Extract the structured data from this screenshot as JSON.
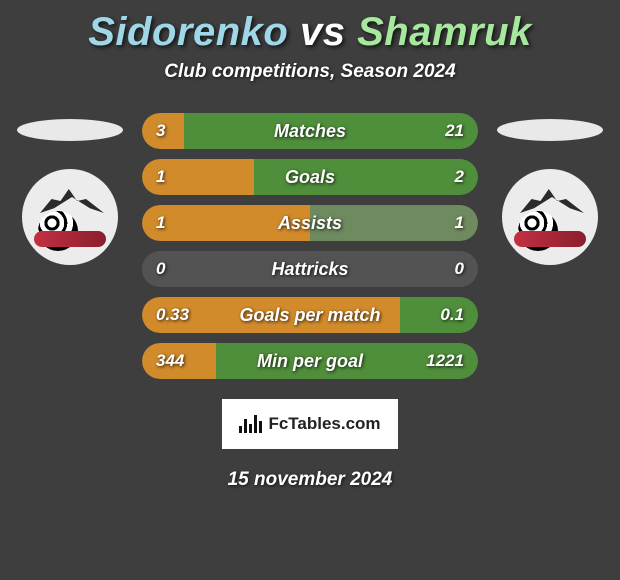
{
  "title": {
    "player1": "Sidorenko",
    "vs": "vs",
    "player2": "Shamruk"
  },
  "subtitle": "Club competitions, Season 2024",
  "colors": {
    "player1_text": "#9fd7e8",
    "player2_text": "#a7e89f",
    "bar_bg": "#535353",
    "bar_left": "#d28b2b",
    "bar_right": "#4f8e3a",
    "bar_right_pale": "#6e8a5e"
  },
  "stats": [
    {
      "label": "Matches",
      "left_val": "3",
      "right_val": "21",
      "left_pct": 12.5,
      "right_pct": 87.5,
      "right_shade": "strong"
    },
    {
      "label": "Goals",
      "left_val": "1",
      "right_val": "2",
      "left_pct": 33.3,
      "right_pct": 66.7,
      "right_shade": "strong"
    },
    {
      "label": "Assists",
      "left_val": "1",
      "right_val": "1",
      "left_pct": 50.0,
      "right_pct": 50.0,
      "right_shade": "pale"
    },
    {
      "label": "Hattricks",
      "left_val": "0",
      "right_val": "0",
      "left_pct": 0,
      "right_pct": 0,
      "right_shade": "pale"
    },
    {
      "label": "Goals per match",
      "left_val": "0.33",
      "right_val": "0.1",
      "left_pct": 76.7,
      "right_pct": 23.3,
      "right_shade": "strong"
    },
    {
      "label": "Min per goal",
      "left_val": "344",
      "right_val": "1221",
      "left_pct": 22.0,
      "right_pct": 78.0,
      "right_shade": "strong"
    }
  ],
  "attribution": "FcTables.com",
  "date": "15 november 2024"
}
